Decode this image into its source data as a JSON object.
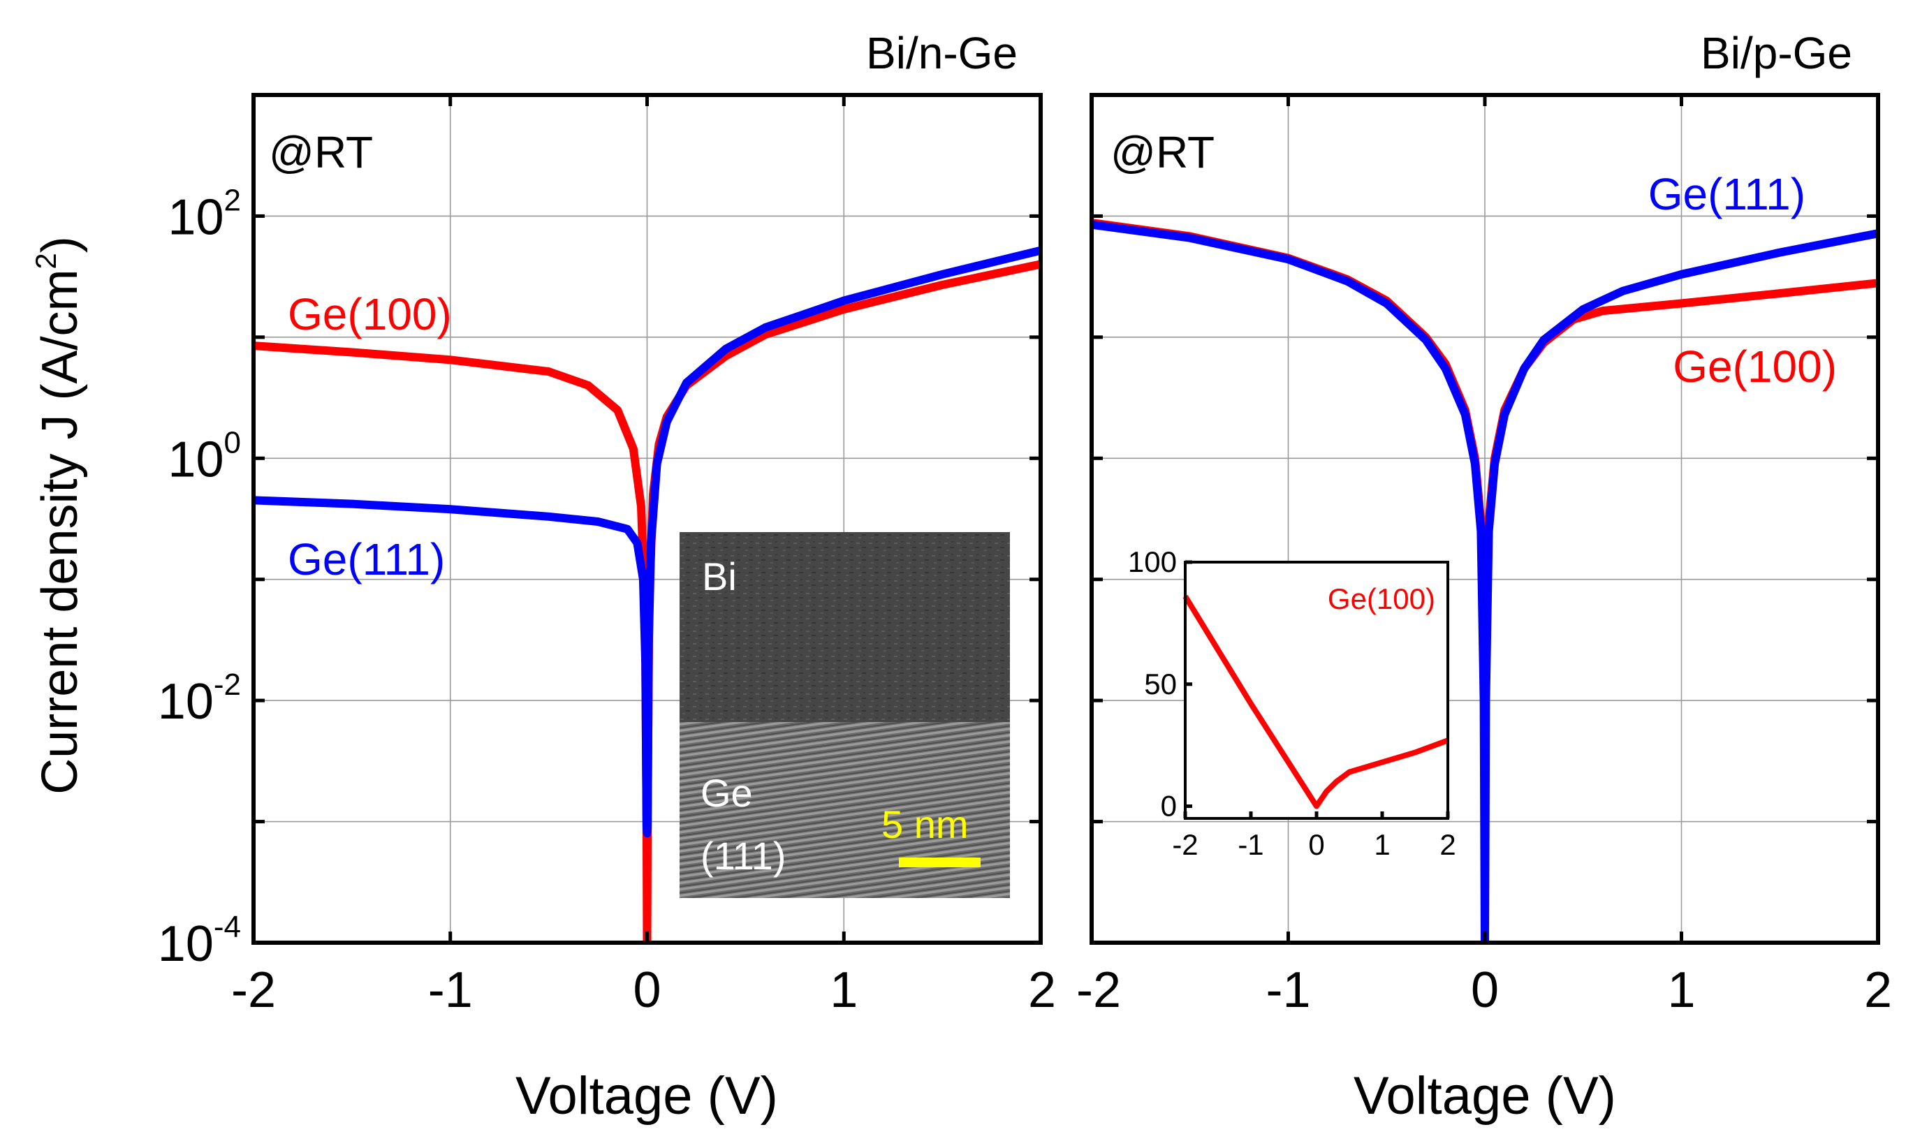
{
  "figure": {
    "y_axis_title": "Current density J (A/cm",
    "y_axis_title_sup": "2",
    "y_axis_title_end": ")",
    "colors": {
      "red": "#ff0000",
      "blue": "#0000ff",
      "yellow": "#ffff00",
      "grid": "#9a9a9a"
    }
  },
  "chart_data": [
    {
      "type": "line",
      "panel": "left",
      "title": "Bi/n-Ge",
      "annotation": "@RT",
      "xlabel": "Voltage (V)",
      "ylabel": "Current density J (A/cm2)",
      "xlim": [
        -2,
        2
      ],
      "ylim_log10": [
        -4,
        3
      ],
      "yscale": "log",
      "grid": true,
      "x_ticks": [
        -2,
        -1,
        0,
        1,
        2
      ],
      "x_tick_labels": [
        "-2",
        "-1",
        "0",
        "1",
        "2"
      ],
      "y_ticks_exp": [
        -4,
        -2,
        0,
        2
      ],
      "y_tick_base": "10",
      "y_tick_exponents": [
        "-4",
        "-2",
        "0",
        "2"
      ],
      "series": [
        {
          "name": "Ge(100)",
          "color": "#ff0000",
          "points": [
            [
              -2,
              8.5
            ],
            [
              -1.5,
              7.5
            ],
            [
              -1,
              6.5
            ],
            [
              -0.5,
              5.2
            ],
            [
              -0.3,
              4.0
            ],
            [
              -0.15,
              2.5
            ],
            [
              -0.07,
              1.2
            ],
            [
              -0.03,
              0.4
            ],
            [
              -0.01,
              0.05
            ],
            [
              -0.002,
              0.0009
            ],
            [
              0,
              0.0001
            ],
            [
              0.002,
              0.0009
            ],
            [
              0.01,
              0.06
            ],
            [
              0.03,
              0.5
            ],
            [
              0.06,
              1.3
            ],
            [
              0.1,
              2.2
            ],
            [
              0.2,
              4.0
            ],
            [
              0.4,
              7.0
            ],
            [
              0.6,
              10.5
            ],
            [
              1,
              17
            ],
            [
              1.5,
              27
            ],
            [
              2,
              40
            ]
          ]
        },
        {
          "name": "Ge(111)",
          "color": "#0000ff",
          "points": [
            [
              -2,
              0.45
            ],
            [
              -1.5,
              0.42
            ],
            [
              -1,
              0.38
            ],
            [
              -0.5,
              0.33
            ],
            [
              -0.25,
              0.3
            ],
            [
              -0.1,
              0.26
            ],
            [
              -0.05,
              0.2
            ],
            [
              -0.02,
              0.1
            ],
            [
              -0.008,
              0.02
            ],
            [
              -0.002,
              0.0009
            ],
            [
              0,
              0.0008
            ],
            [
              0.002,
              0.0009
            ],
            [
              0.008,
              0.03
            ],
            [
              0.02,
              0.2
            ],
            [
              0.05,
              0.9
            ],
            [
              0.1,
              2.0
            ],
            [
              0.2,
              4.2
            ],
            [
              0.4,
              8.0
            ],
            [
              0.6,
              12
            ],
            [
              1,
              20
            ],
            [
              1.5,
              33
            ],
            [
              2,
              52
            ]
          ]
        }
      ],
      "series_labels": [
        "Ge(100)",
        "Ge(111)"
      ],
      "inset_image": {
        "label_top": "Bi",
        "label_bottom_1": "Ge",
        "label_bottom_2": "(111)",
        "scale_bar": "5 nm"
      }
    },
    {
      "type": "line",
      "panel": "right",
      "title": "Bi/p-Ge",
      "annotation": "@RT",
      "xlabel": "Voltage (V)",
      "xlim": [
        -2,
        2
      ],
      "ylim_log10": [
        -4,
        3
      ],
      "yscale": "log",
      "grid": true,
      "x_ticks": [
        -2,
        -1,
        0,
        1,
        2
      ],
      "x_tick_labels": [
        "-2",
        "-1",
        "0",
        "1",
        "2"
      ],
      "series": [
        {
          "name": "Ge(100)",
          "color": "#ff0000",
          "points": [
            [
              -2,
              88
            ],
            [
              -1.5,
              68
            ],
            [
              -1,
              45
            ],
            [
              -0.7,
              30
            ],
            [
              -0.5,
              20
            ],
            [
              -0.3,
              10
            ],
            [
              -0.2,
              6
            ],
            [
              -0.1,
              2.5
            ],
            [
              -0.05,
              1.0
            ],
            [
              -0.02,
              0.3
            ],
            [
              0,
              0.15
            ],
            [
              0.02,
              0.3
            ],
            [
              0.05,
              1.0
            ],
            [
              0.1,
              2.5
            ],
            [
              0.2,
              5.5
            ],
            [
              0.3,
              9
            ],
            [
              0.45,
              14
            ],
            [
              0.6,
              16.5
            ],
            [
              1,
              19
            ],
            [
              1.5,
              23
            ],
            [
              2,
              28
            ]
          ]
        },
        {
          "name": "Ge(111)",
          "color": "#0000ff",
          "points": [
            [
              -2,
              85
            ],
            [
              -1.5,
              66
            ],
            [
              -1,
              44
            ],
            [
              -0.7,
              29
            ],
            [
              -0.5,
              19
            ],
            [
              -0.3,
              9.5
            ],
            [
              -0.2,
              5.5
            ],
            [
              -0.1,
              2.3
            ],
            [
              -0.05,
              0.9
            ],
            [
              -0.02,
              0.25
            ],
            [
              -0.005,
              0.01
            ],
            [
              0,
              0.0001
            ],
            [
              0.005,
              0.01
            ],
            [
              0.02,
              0.25
            ],
            [
              0.05,
              0.9
            ],
            [
              0.1,
              2.3
            ],
            [
              0.2,
              5.5
            ],
            [
              0.3,
              9.5
            ],
            [
              0.5,
              17
            ],
            [
              0.7,
              24
            ],
            [
              1,
              33
            ],
            [
              1.5,
              50
            ],
            [
              2,
              72
            ]
          ]
        }
      ],
      "series_labels": [
        "Ge(111)",
        "Ge(100)"
      ],
      "inset": {
        "type": "line",
        "yscale": "linear",
        "xlim": [
          -2,
          2
        ],
        "ylim": [
          -5,
          100
        ],
        "x_ticks": [
          -2,
          -1,
          0,
          1,
          2
        ],
        "x_tick_labels": [
          "-2",
          "-1",
          "0",
          "1",
          "2"
        ],
        "y_ticks": [
          0,
          50,
          100
        ],
        "y_tick_labels": [
          "0",
          "50",
          "100"
        ],
        "series_label": "Ge(100)",
        "color": "#ff0000",
        "points": [
          [
            -2,
            86
          ],
          [
            -1.5,
            64
          ],
          [
            -1,
            42
          ],
          [
            -0.5,
            21
          ],
          [
            0,
            0
          ],
          [
            0.15,
            6
          ],
          [
            0.3,
            10
          ],
          [
            0.5,
            14
          ],
          [
            1,
            18
          ],
          [
            1.5,
            22
          ],
          [
            2,
            27
          ]
        ]
      }
    }
  ]
}
